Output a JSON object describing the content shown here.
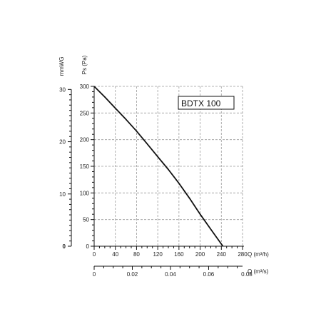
{
  "chart_data": {
    "type": "line",
    "model_label": "BDTX 100",
    "x_axis": {
      "label": "Q (m³/h)",
      "ticks": [
        0,
        40,
        80,
        120,
        160,
        200,
        240,
        280
      ],
      "range": [
        0,
        280
      ],
      "minor_step": 10
    },
    "x_axis_secondary": {
      "label": "Q (m³/s)",
      "ticks": [
        0,
        0.02,
        0.04,
        0.06,
        0.08
      ],
      "tick_labels": [
        "0",
        "0.02",
        "0.04",
        "0.06",
        "0.08"
      ],
      "range_max_m3s": 0.0778,
      "minor_step": 0.005
    },
    "y_axis": {
      "label": "Ps (Pa)",
      "ticks": [
        0,
        50,
        100,
        150,
        200,
        250,
        300
      ],
      "range": [
        0,
        300
      ],
      "minor_step": 10
    },
    "y_axis_secondary": {
      "label": "mmWG",
      "ticks": [
        0,
        10,
        20,
        30
      ],
      "minor_step": 1
    },
    "grid": true,
    "series": [
      {
        "color": "#111111",
        "x": [
          0,
          20,
          40,
          60,
          80,
          100,
          120,
          140,
          160,
          180,
          200,
          220,
          243
        ],
        "y": [
          300,
          280,
          259,
          238,
          216,
          192,
          168,
          144,
          118,
          90,
          60,
          32,
          0
        ]
      }
    ]
  }
}
